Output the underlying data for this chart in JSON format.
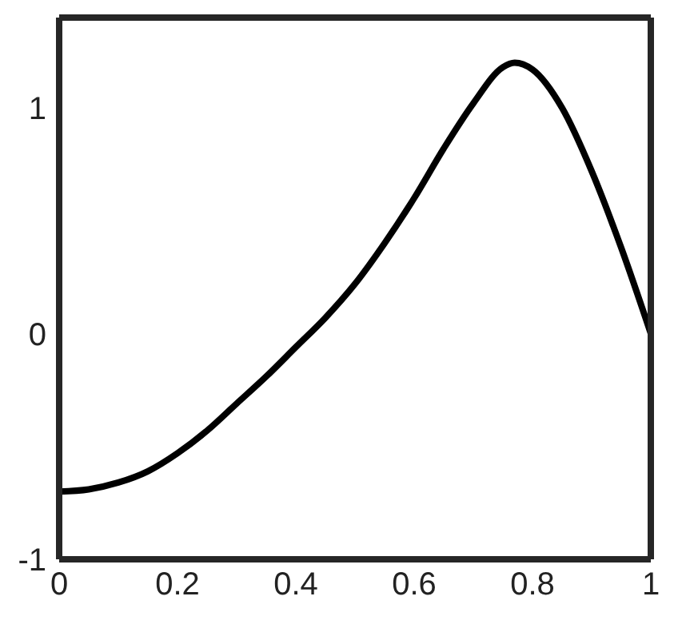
{
  "chart_data": {
    "type": "line",
    "x": [
      0,
      0.05,
      0.1,
      0.15,
      0.2,
      0.25,
      0.3,
      0.35,
      0.4,
      0.45,
      0.5,
      0.55,
      0.6,
      0.65,
      0.7,
      0.75,
      0.77,
      0.8,
      0.85,
      0.9,
      0.95,
      1
    ],
    "series": [
      {
        "color": "#000000",
        "values": [
          -0.7,
          -0.69,
          -0.66,
          -0.61,
          -0.53,
          -0.43,
          -0.31,
          -0.19,
          -0.06,
          0.07,
          0.22,
          0.4,
          0.6,
          0.82,
          1.02,
          1.18,
          1.2,
          1.17,
          1.0,
          0.72,
          0.38,
          0
        ]
      }
    ],
    "xlim": [
      0,
      1
    ],
    "ylim": [
      -1,
      1.4
    ],
    "xticks": [
      0,
      0.2,
      0.4,
      0.6,
      0.8,
      1
    ],
    "yticks": [
      -1,
      0,
      1
    ],
    "grid": false,
    "marker": "none",
    "line_style": "solid"
  }
}
